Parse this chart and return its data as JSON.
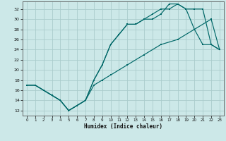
{
  "xlabel": "Humidex (Indice chaleur)",
  "bg_color": "#cce8e8",
  "grid_color": "#aacccc",
  "line_color": "#006868",
  "xlim": [
    -0.5,
    23.5
  ],
  "ylim": [
    11,
    33.5
  ],
  "xticks": [
    0,
    1,
    2,
    3,
    4,
    5,
    6,
    7,
    8,
    9,
    10,
    11,
    12,
    13,
    14,
    15,
    16,
    17,
    18,
    19,
    20,
    21,
    22,
    23
  ],
  "yticks": [
    12,
    14,
    16,
    18,
    20,
    22,
    24,
    26,
    28,
    30,
    32
  ],
  "line1_x": [
    0,
    1,
    2,
    3,
    4,
    5,
    6,
    7,
    8,
    9,
    10,
    11,
    12,
    13,
    14,
    15,
    16,
    17,
    18,
    19,
    20,
    21,
    22,
    23
  ],
  "line1_y": [
    17,
    17,
    16,
    15,
    14,
    12,
    13,
    14,
    18,
    21,
    25,
    27,
    29,
    29,
    30,
    30,
    31,
    33,
    33,
    32,
    28,
    25,
    25,
    24
  ],
  "line2_x": [
    0,
    1,
    2,
    3,
    4,
    5,
    6,
    7,
    8,
    9,
    10,
    11,
    12,
    13,
    14,
    15,
    16,
    17,
    18,
    19,
    20,
    21,
    22,
    23
  ],
  "line2_y": [
    17,
    17,
    16,
    15,
    14,
    12,
    13,
    14,
    18,
    21,
    25,
    27,
    29,
    29,
    30,
    31,
    32,
    32,
    33,
    32,
    32,
    32,
    25,
    24
  ],
  "line3_x": [
    0,
    1,
    2,
    3,
    4,
    5,
    6,
    7,
    8,
    9,
    10,
    12,
    14,
    16,
    18,
    20,
    22,
    23
  ],
  "line3_y": [
    17,
    17,
    16,
    15,
    14,
    12,
    13,
    14,
    17,
    18,
    19,
    21,
    23,
    25,
    26,
    28,
    30,
    24
  ]
}
